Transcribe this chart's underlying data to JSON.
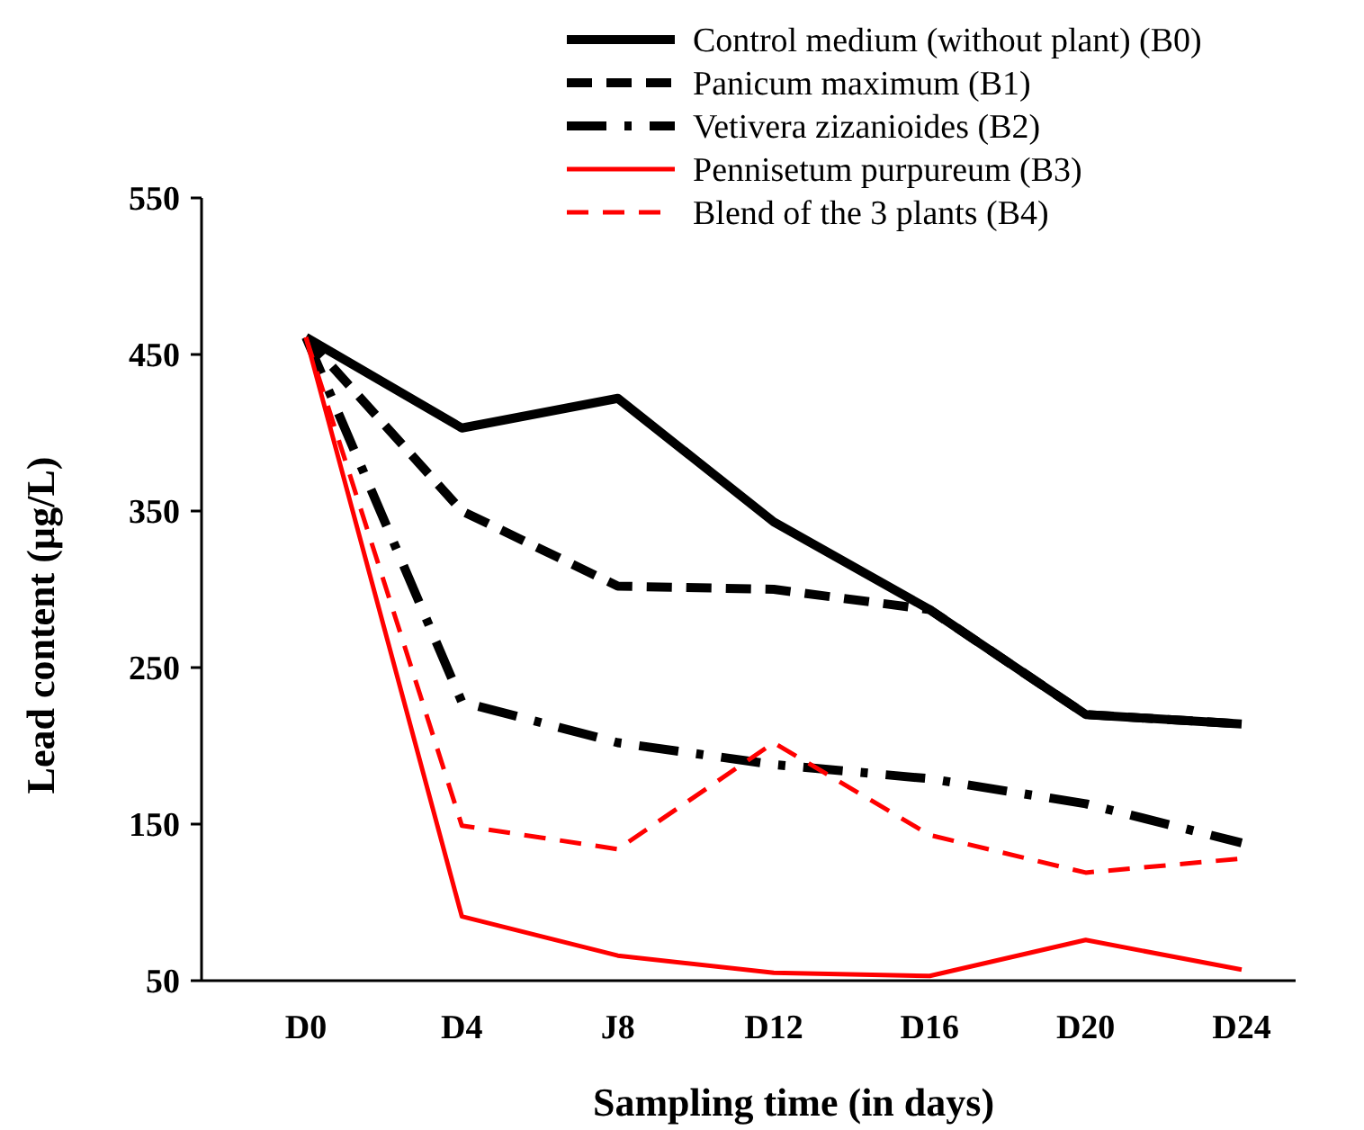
{
  "chart_data": {
    "type": "line",
    "xlabel": "Sampling time (in days)",
    "ylabel": "Lead content (µg/L)",
    "categories": [
      "D0",
      "D4",
      "J8",
      "D12",
      "D16",
      "D20",
      "D24"
    ],
    "ylim": [
      50,
      550
    ],
    "yticks": [
      50,
      150,
      250,
      350,
      450,
      550
    ],
    "grid": false,
    "legend": "top right",
    "marker": "none",
    "series": [
      {
        "name": "Control medium (without plant) (B0)",
        "color": "#000000",
        "line_style": "solid",
        "values": [
          461,
          403,
          422,
          343,
          287,
          220,
          214
        ]
      },
      {
        "name": "Panicum maximum (B1)",
        "color": "#000000",
        "line_style": "dashed",
        "values": [
          461,
          350,
          302,
          300,
          287,
          220,
          214
        ]
      },
      {
        "name": "Vetivera zizanioides (B2)",
        "color": "#000000",
        "line_style": "dashdot",
        "values": [
          461,
          228,
          202,
          188,
          179,
          163,
          138
        ]
      },
      {
        "name": "Pennisetum purpureum (B3)",
        "color": "#ff0000",
        "line_style": "solid",
        "values": [
          461,
          91,
          66,
          55,
          53,
          76,
          57
        ]
      },
      {
        "name": "Blend of the 3 plants  (B4)",
        "color": "#ff0000",
        "line_style": "dashed",
        "values": [
          461,
          149,
          134,
          202,
          143,
          119,
          128
        ]
      }
    ]
  }
}
